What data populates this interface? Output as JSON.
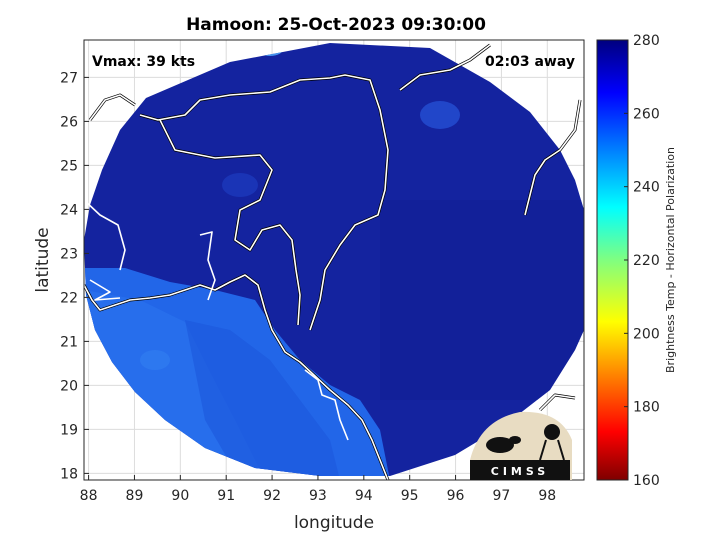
{
  "title": "Hamoon: 25-Oct-2023 09:30:00",
  "vmax_label": "Vmax: 39 kts",
  "time_away_label": "02:03 away",
  "x_axis": {
    "label": "longitude",
    "ticks": [
      "88",
      "89",
      "90",
      "91",
      "92",
      "93",
      "94",
      "95",
      "96",
      "97",
      "98"
    ],
    "range": [
      87.9,
      98.8
    ]
  },
  "y_axis": {
    "label": "latitude",
    "ticks": [
      "18",
      "19",
      "20",
      "21",
      "22",
      "23",
      "24",
      "25",
      "26",
      "27"
    ],
    "range": [
      17.85,
      27.85
    ]
  },
  "colorbar": {
    "label": "Brightness Temp - Horizontal Polarization",
    "ticks": [
      "280",
      "260",
      "240",
      "220",
      "200",
      "180",
      "160"
    ],
    "range": [
      160,
      280
    ],
    "colormap": "jet"
  },
  "logo_text": "CIMSS",
  "colors": {
    "swath_cold_land": "#12209e",
    "swath_ocean": "#1f5fe6",
    "coastline": "#ffffff",
    "border": "#000000",
    "grid": "#d9d9d9"
  }
}
